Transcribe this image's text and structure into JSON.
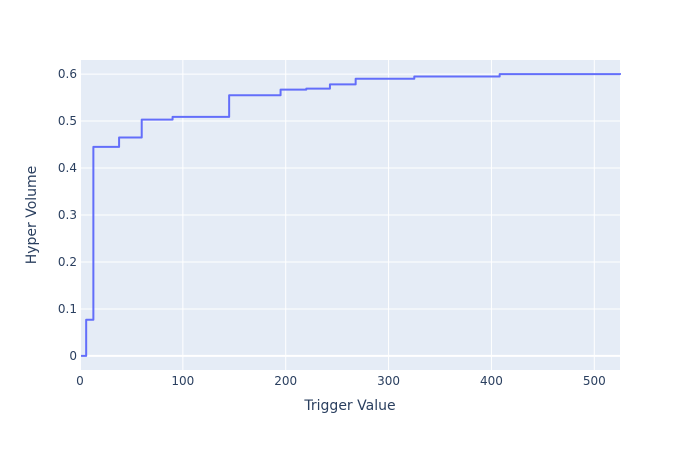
{
  "chart_data": {
    "type": "line",
    "xlabel": "Trigger Value",
    "ylabel": "Hyper Volume",
    "xlim": [
      0,
      525
    ],
    "ylim": [
      -0.03,
      0.63
    ],
    "x_ticks": [
      0,
      100,
      200,
      300,
      400,
      500
    ],
    "x_tick_labels": [
      "0",
      "100",
      "200",
      "300",
      "400",
      "500"
    ],
    "y_ticks": [
      0,
      0.1,
      0.2,
      0.3,
      0.4,
      0.5,
      0.6
    ],
    "y_tick_labels": [
      "0",
      "0.1",
      "0.2",
      "0.3",
      "0.4",
      "0.5",
      "0.6"
    ],
    "grid": true,
    "line_shape": "step (horizontal then vertical)",
    "colors": {
      "plot_bg": "#e5ecf6",
      "grid": "#ffffff",
      "line": "#636efa",
      "text": "#2a3f5f"
    },
    "series": [
      {
        "x": [
          1,
          3,
          6,
          8,
          13,
          15,
          38,
          40,
          60,
          63,
          90,
          93,
          145,
          148,
          195,
          198,
          220,
          223,
          243,
          246,
          268,
          271,
          325,
          328,
          408,
          411,
          525
        ],
        "y": [
          0,
          0,
          0.077,
          0.077,
          0.445,
          0.445,
          0.465,
          0.465,
          0.503,
          0.503,
          0.509,
          0.509,
          0.555,
          0.555,
          0.567,
          0.567,
          0.569,
          0.569,
          0.578,
          0.578,
          0.59,
          0.59,
          0.595,
          0.595,
          0.6,
          0.6,
          0.602
        ]
      }
    ]
  }
}
